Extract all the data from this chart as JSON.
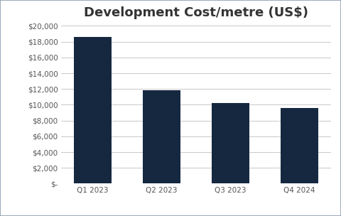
{
  "categories": [
    "Q1 2023",
    "Q2 2023",
    "Q3 2023",
    "Q4 2024"
  ],
  "values": [
    18600,
    11800,
    10200,
    9600
  ],
  "bar_color": "#162840",
  "title": "Development Cost/metre (US$)",
  "title_fontsize": 13,
  "ylim": [
    0,
    20000
  ],
  "ytick_step": 2000,
  "background_color": "#ffffff",
  "plot_bg_color": "#ffffff",
  "grid_color": "#c8c8c8",
  "tick_label_fontsize": 7.5,
  "border_color": "#8a9ab0",
  "title_color": "#333333"
}
